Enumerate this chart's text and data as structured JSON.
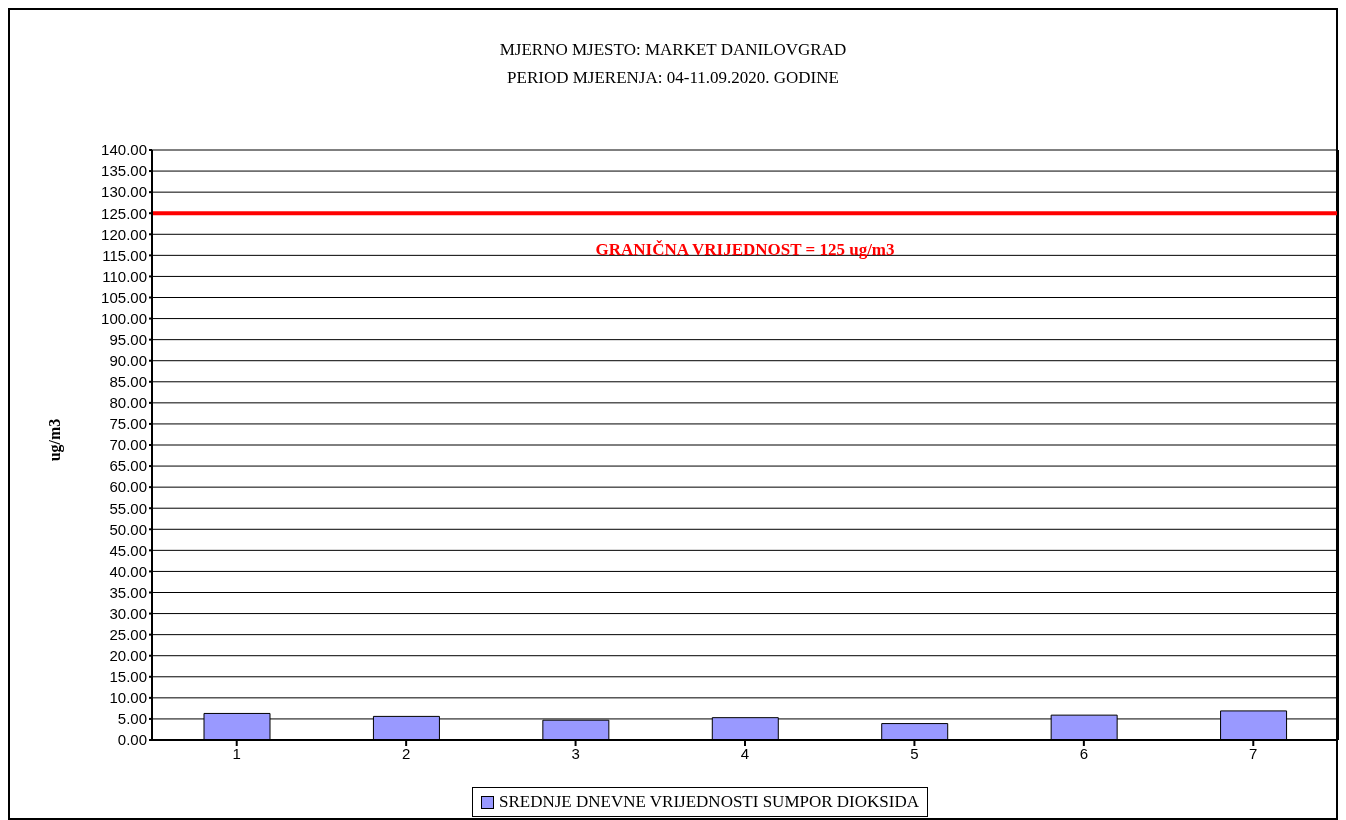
{
  "chart_data": {
    "type": "bar",
    "title": "MJERNO MJESTO: MARKET DANILOVGRAD",
    "subtitle": "PERIOD MJERENJA: 04-11.09.2020. GODINE",
    "ylabel": "ug/m3",
    "categories": [
      "1",
      "2",
      "3",
      "4",
      "5",
      "6",
      "7"
    ],
    "series": [
      {
        "name": "SREDNJE DNEVNE VRIJEDNOSTI SUMPOR DIOKSIDA",
        "color": "#9999ff",
        "values": [
          6.3,
          5.6,
          4.7,
          5.3,
          3.9,
          5.9,
          6.9
        ]
      }
    ],
    "ylim": [
      0,
      140
    ],
    "yticks": [
      {
        "value": 0,
        "label": "0.00"
      },
      {
        "value": 5,
        "label": "5.00"
      },
      {
        "value": 10,
        "label": "10.00"
      },
      {
        "value": 15,
        "label": "15.00"
      },
      {
        "value": 20,
        "label": "20.00"
      },
      {
        "value": 25,
        "label": "25.00"
      },
      {
        "value": 30,
        "label": "30.00"
      },
      {
        "value": 35,
        "label": "35.00"
      },
      {
        "value": 40,
        "label": "40.00"
      },
      {
        "value": 45,
        "label": "45.00"
      },
      {
        "value": 50,
        "label": "50.00"
      },
      {
        "value": 55,
        "label": "55.00"
      },
      {
        "value": 60,
        "label": "60.00"
      },
      {
        "value": 65,
        "label": "65.00"
      },
      {
        "value": 70,
        "label": "70.00"
      },
      {
        "value": 75,
        "label": "75.00"
      },
      {
        "value": 80,
        "label": "80.00"
      },
      {
        "value": 85,
        "label": "85.00"
      },
      {
        "value": 90,
        "label": "90.00"
      },
      {
        "value": 95,
        "label": "95.00"
      },
      {
        "value": 100,
        "label": "100.00"
      },
      {
        "value": 105,
        "label": "105.00"
      },
      {
        "value": 110,
        "label": "110.00"
      },
      {
        "value": 115,
        "label": "115.00"
      },
      {
        "value": 120,
        "label": "120.00"
      },
      {
        "value": 125,
        "label": "125.00"
      },
      {
        "value": 130,
        "label": "130.00"
      },
      {
        "value": 135,
        "label": "135.00"
      },
      {
        "value": 140,
        "label": "140.00"
      }
    ],
    "ref_lines": [
      {
        "axis": "y",
        "value": 125,
        "label": "GRANIČNA VRIJEDNOST = 125 ug/m3",
        "color": "#ff0000"
      }
    ],
    "grid": "y",
    "legend": "bottom"
  }
}
